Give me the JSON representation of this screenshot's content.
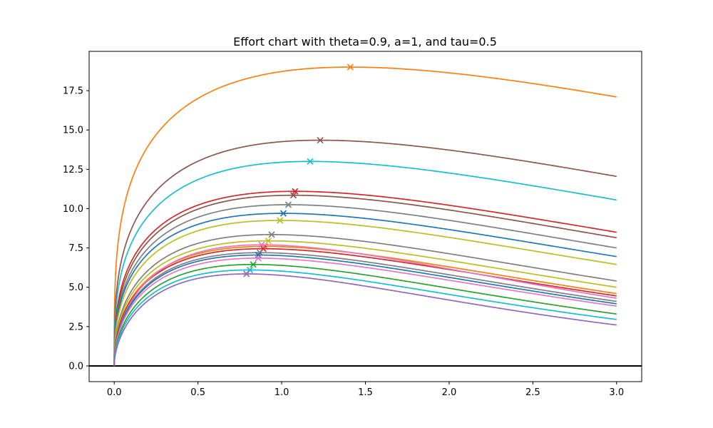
{
  "chart_data": {
    "type": "line",
    "title": "Effort chart with theta=0.9, a=1, and tau=0.5",
    "xlabel": "",
    "ylabel": "",
    "xlim": [
      -0.15,
      3.15
    ],
    "ylim": [
      -1.0,
      20.0
    ],
    "x_ticks": [
      0.0,
      0.5,
      1.0,
      1.5,
      2.0,
      2.5,
      3.0
    ],
    "x_tick_labels": [
      "0.0",
      "0.5",
      "1.0",
      "1.5",
      "2.0",
      "2.5",
      "3.0"
    ],
    "y_ticks": [
      0.0,
      2.5,
      5.0,
      7.5,
      10.0,
      12.5,
      15.0,
      17.5
    ],
    "y_tick_labels": [
      "0.0",
      "2.5",
      "5.0",
      "7.5",
      "10.0",
      "12.5",
      "15.0",
      "17.5"
    ],
    "horizontal_line": {
      "y": 0.0,
      "color": "#000000"
    },
    "x_range": [
      0.0,
      3.0
    ],
    "grid": false,
    "series": [
      {
        "color": "#ff7f0e",
        "peak_x": 1.41,
        "peak_y": 19.0,
        "end_y": 17.1
      },
      {
        "color": "#8c564b",
        "peak_x": 1.23,
        "peak_y": 14.35,
        "end_y": 12.05
      },
      {
        "color": "#17becf",
        "peak_x": 1.17,
        "peak_y": 13.0,
        "end_y": 10.55
      },
      {
        "color": "#d62728",
        "peak_x": 1.08,
        "peak_y": 11.1,
        "end_y": 8.5
      },
      {
        "color": "#8c564b",
        "peak_x": 1.07,
        "peak_y": 10.85,
        "end_y": 8.15
      },
      {
        "color": "#7f7f7f",
        "peak_x": 1.04,
        "peak_y": 10.25,
        "end_y": 7.5
      },
      {
        "color": "#1f77b4",
        "peak_x": 1.01,
        "peak_y": 9.7,
        "end_y": 6.95
      },
      {
        "color": "#bcbd22",
        "peak_x": 0.99,
        "peak_y": 9.25,
        "end_y": 6.45
      },
      {
        "color": "#7f7f7f",
        "peak_x": 0.94,
        "peak_y": 8.35,
        "end_y": 5.4
      },
      {
        "color": "#bcbd22",
        "peak_x": 0.92,
        "peak_y": 7.95,
        "end_y": 5.0
      },
      {
        "color": "#ff7f0e",
        "peak_x": 0.9,
        "peak_y": 7.6,
        "end_y": 4.6
      },
      {
        "color": "#d62728",
        "peak_x": 0.89,
        "peak_y": 7.45,
        "end_y": 4.45
      },
      {
        "color": "#e377c2",
        "peak_x": 0.88,
        "peak_y": 7.7,
        "end_y": 4.3
      },
      {
        "color": "#7f7f7f",
        "peak_x": 0.87,
        "peak_y": 7.2,
        "end_y": 4.1
      },
      {
        "color": "#1f77b4",
        "peak_x": 0.86,
        "peak_y": 7.05,
        "end_y": 3.95
      },
      {
        "color": "#e377c2",
        "peak_x": 0.86,
        "peak_y": 6.85,
        "end_y": 3.8
      },
      {
        "color": "#2ca02c",
        "peak_x": 0.83,
        "peak_y": 6.45,
        "end_y": 3.3
      },
      {
        "color": "#17becf",
        "peak_x": 0.81,
        "peak_y": 6.1,
        "end_y": 2.95
      },
      {
        "color": "#9467bd",
        "peak_x": 0.79,
        "peak_y": 5.85,
        "end_y": 2.6
      }
    ]
  }
}
